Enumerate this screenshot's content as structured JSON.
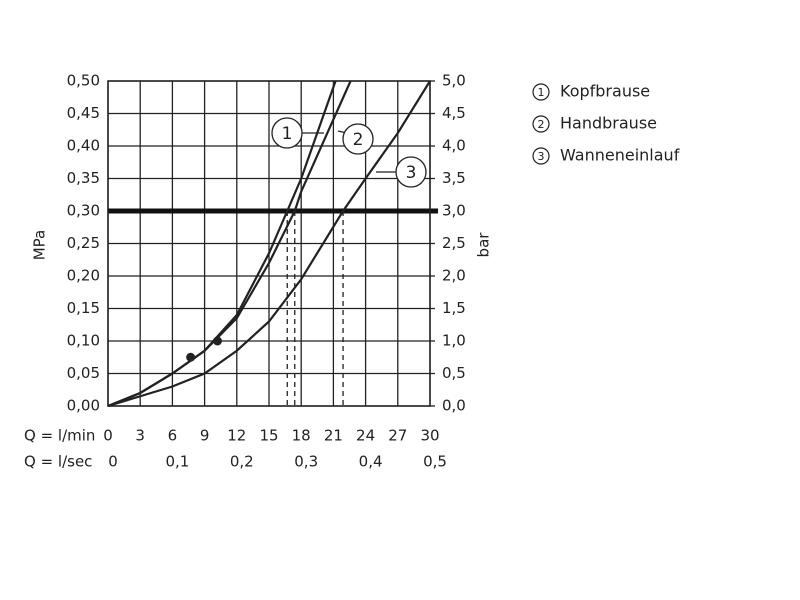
{
  "chart_data": {
    "type": "line",
    "ylabel": "MPa",
    "y2label": "bar",
    "xlabel": "Q = l/min",
    "x2label": "Q = l/sec",
    "xlim": [
      0,
      30
    ],
    "xticks": [
      0,
      3,
      6,
      9,
      12,
      15,
      18,
      21,
      24,
      27,
      30
    ],
    "x2lim": [
      0,
      0.5
    ],
    "x2ticks": [
      0,
      {
        "value": 0.1,
        "label": "0,1"
      },
      {
        "value": 0.2,
        "label": "0,2"
      },
      {
        "value": 0.3,
        "label": "0,3"
      },
      {
        "value": 0.4,
        "label": "0,4"
      },
      {
        "value": 0.5,
        "label": "0,5"
      }
    ],
    "ylim": [
      0,
      0.5
    ],
    "yticks": [
      {
        "value": 0,
        "label": "0,00"
      },
      {
        "value": 0.05,
        "label": "0,05"
      },
      {
        "value": 0.1,
        "label": "0,10"
      },
      {
        "value": 0.15,
        "label": "0,15"
      },
      {
        "value": 0.2,
        "label": "0,20"
      },
      {
        "value": 0.25,
        "label": "0,25"
      },
      {
        "value": 0.3,
        "label": "0,30"
      },
      {
        "value": 0.35,
        "label": "0,35"
      },
      {
        "value": 0.4,
        "label": "0,40"
      },
      {
        "value": 0.45,
        "label": "0,45"
      },
      {
        "value": 0.5,
        "label": "0,50"
      }
    ],
    "y2lim": [
      0,
      5
    ],
    "y2ticks": [
      {
        "value": 0,
        "label": "0,0"
      },
      {
        "value": 0.5,
        "label": "0,5"
      },
      {
        "value": 1,
        "label": "1,0"
      },
      {
        "value": 1.5,
        "label": "1,5"
      },
      {
        "value": 2,
        "label": "2,0"
      },
      {
        "value": 2.5,
        "label": "2,5"
      },
      {
        "value": 3,
        "label": "3,0"
      },
      {
        "value": 3.5,
        "label": "3,5"
      },
      {
        "value": 4,
        "label": "4,0"
      },
      {
        "value": 4.5,
        "label": "4,5"
      },
      {
        "value": 5,
        "label": "5,0"
      }
    ],
    "grid": true,
    "reference_y": 0.3,
    "series": [
      {
        "label": "1",
        "name": "Kopfbrause",
        "color": "#222222",
        "drop_x": 16.7,
        "x": [
          0,
          3,
          6,
          9,
          12,
          15,
          16.7,
          18,
          21.2
        ],
        "values": [
          0,
          0.02,
          0.05,
          0.085,
          0.14,
          0.235,
          0.3,
          0.35,
          0.5
        ]
      },
      {
        "label": "2",
        "name": "Handbrause",
        "color": "#222222",
        "drop_x": 17.4,
        "x": [
          0,
          3,
          6,
          9,
          12,
          15,
          17.4,
          18,
          22.6
        ],
        "values": [
          0,
          0.02,
          0.05,
          0.085,
          0.135,
          0.22,
          0.3,
          0.33,
          0.5
        ]
      },
      {
        "label": "3",
        "name": "Wanneneinlauf",
        "color": "#222222",
        "drop_x": 21.9,
        "x": [
          0,
          3,
          6,
          9,
          12,
          15,
          18,
          21.9,
          24,
          27,
          30
        ],
        "values": [
          0,
          0.015,
          0.03,
          0.05,
          0.085,
          0.13,
          0.195,
          0.3,
          0.35,
          0.42,
          0.5
        ]
      }
    ],
    "markers": [
      {
        "x": 7.7,
        "y": 0.075
      },
      {
        "x": 10.2,
        "y": 0.1
      }
    ]
  }
}
